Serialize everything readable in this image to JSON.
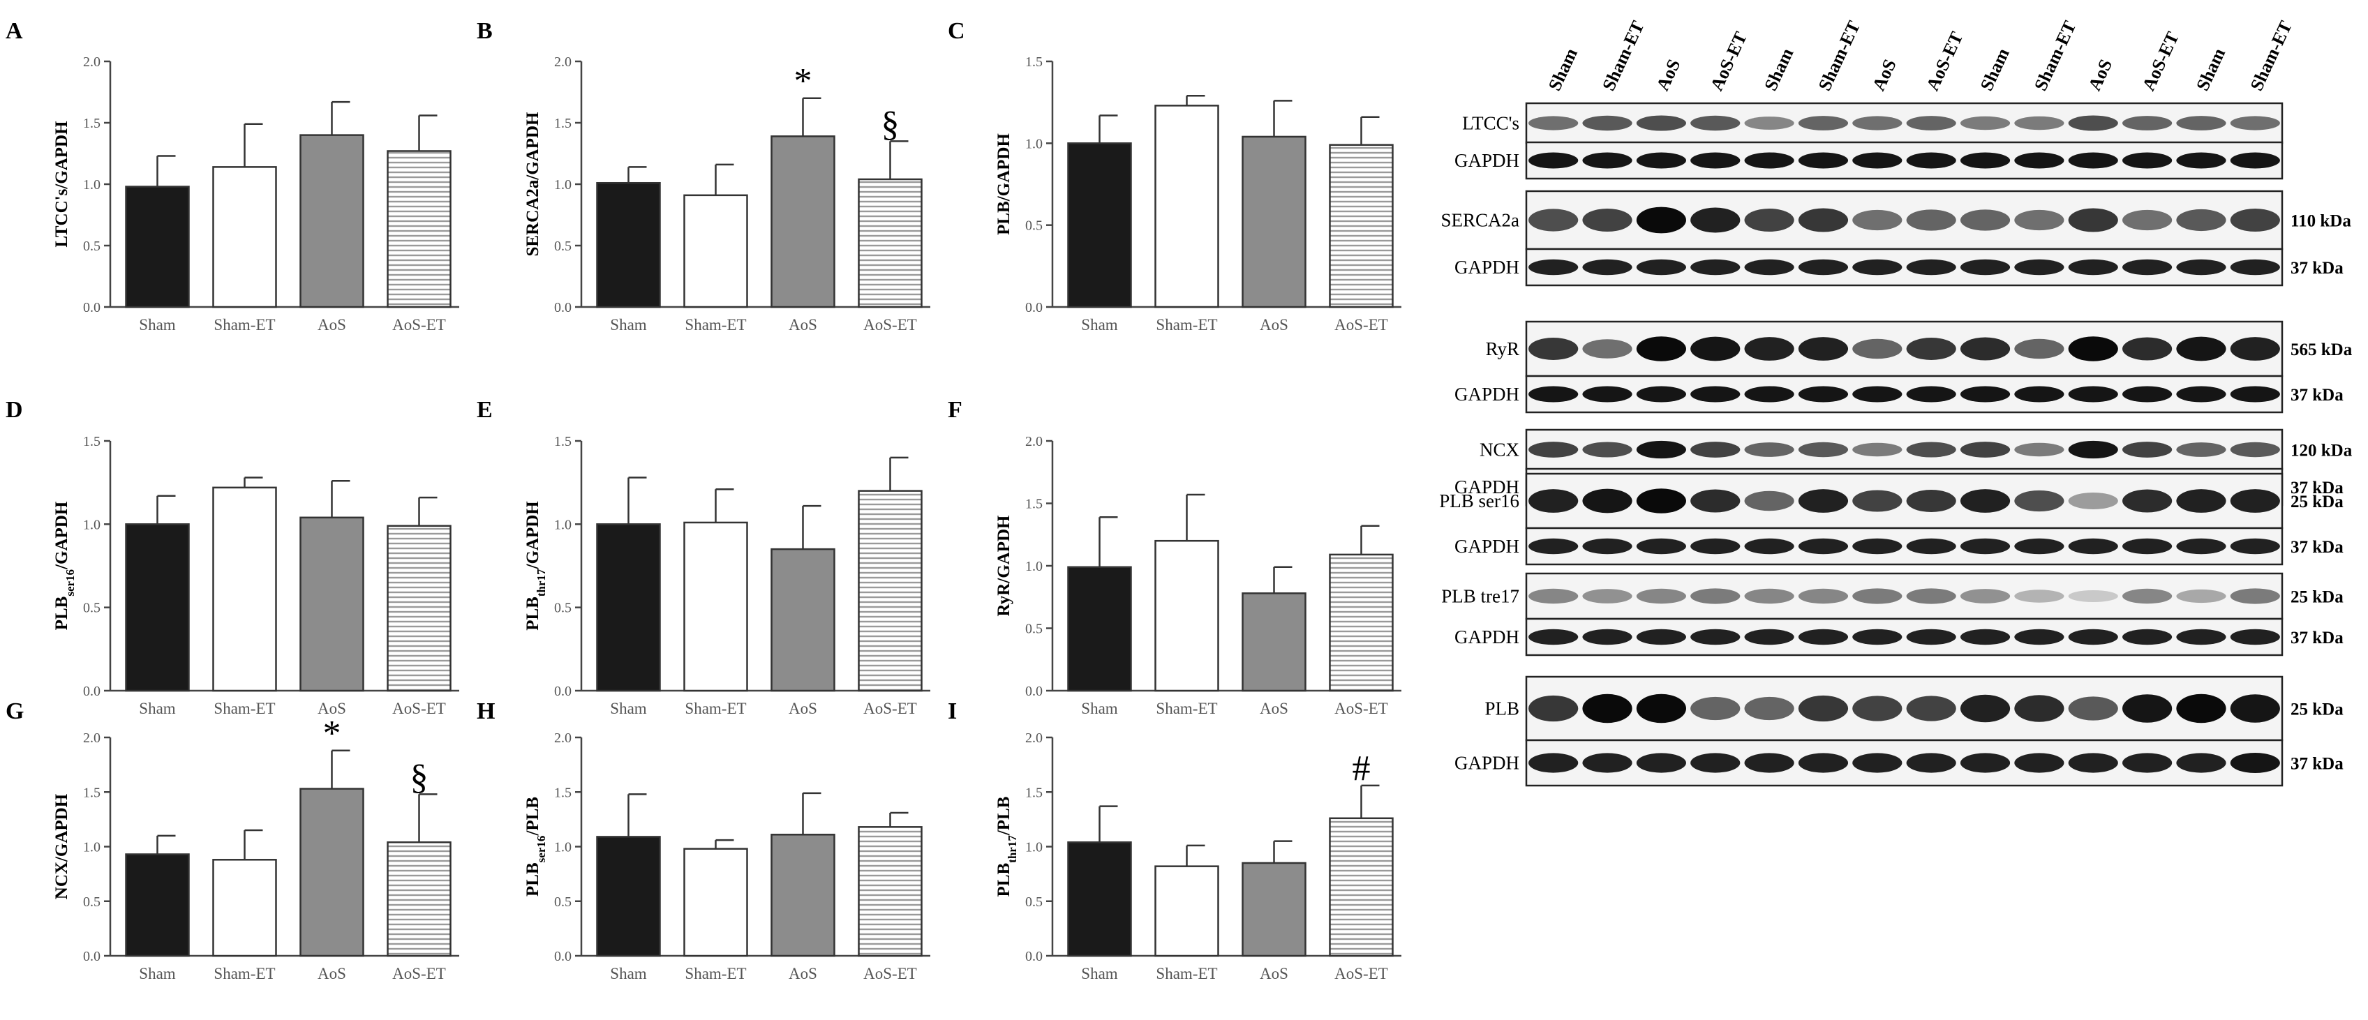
{
  "chart_data": [
    {
      "panel": "A",
      "type": "bar",
      "categories": [
        "Sham",
        "Sham-ET",
        "AoS",
        "AoS-ET"
      ],
      "values": [
        0.98,
        1.14,
        1.4,
        1.27
      ],
      "errors": [
        0.25,
        0.35,
        0.27,
        0.29
      ],
      "ylabel": "LTCC's/GAPDH",
      "ylim": [
        0,
        2.0
      ],
      "yticks": [
        "0.0",
        "0.5",
        "1.0",
        "1.5",
        "2.0"
      ],
      "annotations": []
    },
    {
      "panel": "B",
      "type": "bar",
      "categories": [
        "Sham",
        "Sham-ET",
        "AoS",
        "AoS-ET"
      ],
      "values": [
        1.01,
        0.91,
        1.39,
        1.04
      ],
      "errors": [
        0.13,
        0.25,
        0.31,
        0.31
      ],
      "ylabel": "SERCA2a/GAPDH",
      "ylim": [
        0,
        2.0
      ],
      "yticks": [
        "0.0",
        "0.5",
        "1.0",
        "1.5",
        "2.0"
      ],
      "annotations": [
        {
          "index": 2,
          "text": "*"
        },
        {
          "index": 3,
          "text": "§"
        }
      ]
    },
    {
      "panel": "C",
      "type": "bar",
      "categories": [
        "Sham",
        "Sham-ET",
        "AoS",
        "AoS-ET"
      ],
      "values": [
        1.0,
        1.23,
        1.04,
        0.99
      ],
      "errors": [
        0.17,
        0.06,
        0.22,
        0.17
      ],
      "ylabel": "PLB/GAPDH",
      "ylim": [
        0,
        1.5
      ],
      "yticks": [
        "0.0",
        "0.5",
        "1.0",
        "1.5"
      ],
      "annotations": []
    },
    {
      "panel": "D",
      "type": "bar",
      "categories": [
        "Sham",
        "Sham-ET",
        "AoS",
        "AoS-ET"
      ],
      "values": [
        1.0,
        1.22,
        1.04,
        0.99
      ],
      "errors": [
        0.17,
        0.06,
        0.22,
        0.17
      ],
      "ylabel": "PLBser16/GAPDH",
      "ylabel_main": "PLB",
      "ylabel_sub": "ser16",
      "ylabel_rest": "/GAPDH",
      "ylim": [
        0,
        1.5
      ],
      "yticks": [
        "0.0",
        "0.5",
        "1.0",
        "1.5"
      ],
      "annotations": []
    },
    {
      "panel": "E",
      "type": "bar",
      "categories": [
        "Sham",
        "Sham-ET",
        "AoS",
        "AoS-ET"
      ],
      "values": [
        1.0,
        1.01,
        0.85,
        1.2
      ],
      "errors": [
        0.28,
        0.2,
        0.26,
        0.2
      ],
      "ylabel": "PLBthr17/GAPDH",
      "ylabel_main": "PLB",
      "ylabel_sub": "thr17",
      "ylabel_rest": "/GAPDH",
      "ylim": [
        0,
        1.5
      ],
      "yticks": [
        "0.0",
        "0.5",
        "1.0",
        "1.5"
      ],
      "annotations": []
    },
    {
      "panel": "F",
      "type": "bar",
      "categories": [
        "Sham",
        "Sham-ET",
        "AoS",
        "AoS-ET"
      ],
      "values": [
        0.99,
        1.2,
        0.78,
        1.09
      ],
      "errors": [
        0.4,
        0.37,
        0.21,
        0.23
      ],
      "ylabel": "RyR/GAPDH",
      "ylim": [
        0,
        2.0
      ],
      "yticks": [
        "0.0",
        "0.5",
        "1.0",
        "1.5",
        "2.0"
      ],
      "annotations": []
    },
    {
      "panel": "G",
      "type": "bar",
      "categories": [
        "Sham",
        "Sham-ET",
        "AoS",
        "AoS-ET"
      ],
      "values": [
        0.93,
        0.88,
        1.53,
        1.04
      ],
      "errors": [
        0.17,
        0.27,
        0.35,
        0.44
      ],
      "ylabel": "NCX/GAPDH",
      "ylim": [
        0,
        2.0
      ],
      "yticks": [
        "0.0",
        "0.5",
        "1.0",
        "1.5",
        "2.0"
      ],
      "annotations": [
        {
          "index": 2,
          "text": "*"
        },
        {
          "index": 3,
          "text": "§"
        }
      ]
    },
    {
      "panel": "H",
      "type": "bar",
      "categories": [
        "Sham",
        "Sham-ET",
        "AoS",
        "AoS-ET"
      ],
      "values": [
        1.09,
        0.98,
        1.11,
        1.18
      ],
      "errors": [
        0.39,
        0.08,
        0.38,
        0.13
      ],
      "ylabel": "PLBser16/PLB",
      "ylabel_main": "PLB",
      "ylabel_sub": "ser16",
      "ylabel_rest": "/PLB",
      "ylim": [
        0,
        2.0
      ],
      "yticks": [
        "0.0",
        "0.5",
        "1.0",
        "1.5",
        "2.0"
      ],
      "annotations": []
    },
    {
      "panel": "I",
      "type": "bar",
      "categories": [
        "Sham",
        "Sham-ET",
        "AoS",
        "AoS-ET"
      ],
      "values": [
        1.04,
        0.82,
        0.85,
        1.26
      ],
      "errors": [
        0.33,
        0.19,
        0.2,
        0.3
      ],
      "ylabel": "PLBthr17/PLB",
      "ylabel_main": "PLB",
      "ylabel_sub": "thr17",
      "ylabel_rest": "/PLB",
      "ylim": [
        0,
        2.0
      ],
      "yticks": [
        "0.0",
        "0.5",
        "1.0",
        "1.5",
        "2.0"
      ],
      "annotations": [
        {
          "index": 3,
          "text": "#"
        }
      ]
    }
  ],
  "bar_styles": [
    {
      "fill": "#1a1a1a",
      "pattern": "none"
    },
    {
      "fill": "#ffffff",
      "pattern": "none"
    },
    {
      "fill": "#8c8c8c",
      "pattern": "none"
    },
    {
      "fill": "#ffffff",
      "pattern": "hstripes"
    }
  ],
  "blot": {
    "lanes": [
      "Sham",
      "Sham-ET",
      "AoS",
      "AoS-ET",
      "Sham",
      "Sham-ET",
      "AoS",
      "AoS-ET",
      "Sham",
      "Sham-ET",
      "AoS",
      "AoS-ET",
      "Sham",
      "Sham-ET"
    ],
    "groups": [
      {
        "rows": [
          {
            "label": "LTCC's",
            "kda": "",
            "intensity": [
              0.55,
              0.65,
              0.7,
              0.65,
              0.45,
              0.6,
              0.55,
              0.6,
              0.5,
              0.5,
              0.7,
              0.6,
              0.6,
              0.55
            ]
          },
          {
            "label": "GAPDH",
            "kda": "",
            "intensity": [
              0.95,
              0.95,
              0.95,
              0.95,
              0.95,
              0.95,
              0.95,
              0.95,
              0.95,
              0.95,
              0.95,
              0.95,
              0.95,
              0.95
            ]
          }
        ]
      },
      {
        "rows": [
          {
            "label": "SERCA2a",
            "kda": "110 kDa",
            "intensity": [
              0.7,
              0.75,
              1.0,
              0.9,
              0.75,
              0.8,
              0.55,
              0.6,
              0.6,
              0.55,
              0.8,
              0.55,
              0.65,
              0.75
            ]
          },
          {
            "label": "GAPDH",
            "kda": "37 kDa",
            "intensity": [
              0.9,
              0.9,
              0.9,
              0.9,
              0.9,
              0.9,
              0.9,
              0.9,
              0.9,
              0.9,
              0.9,
              0.9,
              0.9,
              0.9
            ]
          }
        ]
      },
      {
        "rows": [
          {
            "label": "RyR",
            "kda": "565 kDa",
            "intensity": [
              0.8,
              0.55,
              1.0,
              0.95,
              0.9,
              0.9,
              0.6,
              0.8,
              0.85,
              0.6,
              1.0,
              0.85,
              0.95,
              0.9
            ]
          },
          {
            "label": "GAPDH",
            "kda": "37 kDa",
            "intensity": [
              0.95,
              0.95,
              0.95,
              0.95,
              0.95,
              0.95,
              0.95,
              0.95,
              0.95,
              0.95,
              0.95,
              0.95,
              0.95,
              0.95
            ]
          }
        ]
      },
      {
        "rows": [
          {
            "label": "NCX",
            "kda": "120 kDa",
            "intensity": [
              0.75,
              0.7,
              0.95,
              0.75,
              0.6,
              0.65,
              0.5,
              0.7,
              0.75,
              0.5,
              0.95,
              0.75,
              0.6,
              0.65
            ]
          },
          {
            "label": "GAPDH",
            "kda": "37 kDa",
            "intensity": [
              0.9,
              0.9,
              0.9,
              0.9,
              0.9,
              0.9,
              0.9,
              0.9,
              0.9,
              0.9,
              0.9,
              0.9,
              0.9,
              0.9
            ]
          }
        ]
      },
      {
        "rows": [
          {
            "label": "PLB ser16",
            "kda": "25 kDa",
            "intensity": [
              0.9,
              0.95,
              1.0,
              0.85,
              0.6,
              0.9,
              0.75,
              0.8,
              0.9,
              0.7,
              0.35,
              0.85,
              0.9,
              0.9
            ]
          },
          {
            "label": "GAPDH",
            "kda": "37 kDa",
            "intensity": [
              0.9,
              0.9,
              0.9,
              0.9,
              0.9,
              0.9,
              0.9,
              0.9,
              0.9,
              0.9,
              0.9,
              0.9,
              0.9,
              0.9
            ]
          }
        ]
      },
      {
        "rows": [
          {
            "label": "PLB tre17",
            "kda": "25 kDa",
            "intensity": [
              0.45,
              0.4,
              0.45,
              0.5,
              0.45,
              0.45,
              0.5,
              0.5,
              0.4,
              0.25,
              0.15,
              0.45,
              0.3,
              0.5
            ]
          },
          {
            "label": "GAPDH",
            "kda": "37 kDa",
            "intensity": [
              0.9,
              0.9,
              0.9,
              0.9,
              0.9,
              0.9,
              0.9,
              0.9,
              0.9,
              0.9,
              0.9,
              0.9,
              0.9,
              0.9
            ]
          }
        ]
      },
      {
        "rows": [
          {
            "label": "PLB",
            "kda": "25 kDa",
            "intensity": [
              0.8,
              1.0,
              1.0,
              0.6,
              0.6,
              0.8,
              0.75,
              0.75,
              0.9,
              0.85,
              0.65,
              0.95,
              1.0,
              0.95
            ]
          },
          {
            "label": "GAPDH",
            "kda": "37 kDa",
            "intensity": [
              0.9,
              0.9,
              0.9,
              0.9,
              0.9,
              0.9,
              0.9,
              0.9,
              0.9,
              0.9,
              0.9,
              0.9,
              0.9,
              0.95
            ]
          }
        ]
      }
    ]
  }
}
